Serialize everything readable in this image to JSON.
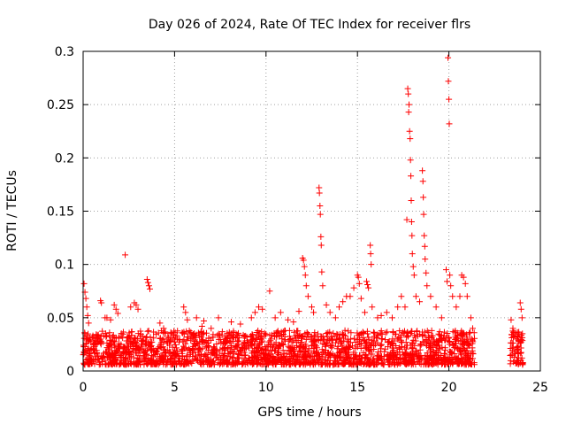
{
  "chart_data": {
    "type": "scatter",
    "title": "Day 026 of 2024, Rate Of TEC Index for receiver flrs",
    "xlabel": "GPS time / hours",
    "ylabel": "ROTI / TECUs",
    "xlim": [
      0,
      25
    ],
    "ylim": [
      0,
      0.3
    ],
    "xticks": [
      0,
      5,
      10,
      15,
      20,
      25
    ],
    "yticks": [
      0,
      0.05,
      0.1,
      0.15,
      0.2,
      0.25,
      0.3
    ],
    "xtick_labels": [
      "0",
      "5",
      "10",
      "15",
      "20",
      "25"
    ],
    "ytick_labels": [
      "0",
      "0.05",
      "0.1",
      "0.15",
      "0.2",
      "0.25",
      "0.3"
    ],
    "grid": true,
    "marker": "+",
    "color": "#ff0000",
    "series": [
      {
        "points": [
          [
            0.05,
            0.082
          ],
          [
            0.1,
            0.074
          ],
          [
            0.15,
            0.068
          ],
          [
            0.2,
            0.06
          ],
          [
            0.25,
            0.052
          ],
          [
            0.3,
            0.045
          ],
          [
            0.1,
            0.035
          ],
          [
            0.2,
            0.03
          ],
          [
            0.95,
            0.066
          ],
          [
            1.0,
            0.064
          ],
          [
            1.2,
            0.05
          ],
          [
            1.3,
            0.05
          ],
          [
            1.5,
            0.048
          ],
          [
            1.7,
            0.062
          ],
          [
            1.8,
            0.058
          ],
          [
            1.9,
            0.054
          ],
          [
            2.3,
            0.109
          ],
          [
            2.6,
            0.06
          ],
          [
            2.8,
            0.064
          ],
          [
            2.9,
            0.062
          ],
          [
            3.0,
            0.058
          ],
          [
            3.1,
            0.02
          ],
          [
            3.5,
            0.086
          ],
          [
            3.55,
            0.083
          ],
          [
            3.6,
            0.08
          ],
          [
            3.65,
            0.077
          ],
          [
            4.2,
            0.045
          ],
          [
            4.4,
            0.04
          ],
          [
            4.8,
            0.035
          ],
          [
            5.5,
            0.06
          ],
          [
            5.6,
            0.055
          ],
          [
            5.7,
            0.048
          ],
          [
            6.2,
            0.05
          ],
          [
            6.5,
            0.042
          ],
          [
            6.6,
            0.047
          ],
          [
            7.0,
            0.04
          ],
          [
            7.4,
            0.05
          ],
          [
            8.1,
            0.046
          ],
          [
            8.6,
            0.044
          ],
          [
            9.2,
            0.05
          ],
          [
            9.4,
            0.055
          ],
          [
            9.6,
            0.06
          ],
          [
            9.8,
            0.058
          ],
          [
            10.2,
            0.075
          ],
          [
            10.5,
            0.05
          ],
          [
            10.8,
            0.055
          ],
          [
            11.2,
            0.048
          ],
          [
            11.5,
            0.046
          ],
          [
            11.8,
            0.056
          ],
          [
            12.0,
            0.106
          ],
          [
            12.05,
            0.104
          ],
          [
            12.1,
            0.098
          ],
          [
            12.15,
            0.09
          ],
          [
            12.2,
            0.08
          ],
          [
            12.3,
            0.07
          ],
          [
            12.5,
            0.06
          ],
          [
            12.6,
            0.055
          ],
          [
            12.9,
            0.172
          ],
          [
            12.92,
            0.167
          ],
          [
            12.95,
            0.155
          ],
          [
            12.97,
            0.147
          ],
          [
            13.0,
            0.126
          ],
          [
            13.02,
            0.118
          ],
          [
            13.05,
            0.093
          ],
          [
            13.1,
            0.08
          ],
          [
            13.3,
            0.062
          ],
          [
            13.5,
            0.055
          ],
          [
            13.8,
            0.05
          ],
          [
            14.0,
            0.06
          ],
          [
            14.2,
            0.065
          ],
          [
            14.4,
            0.07
          ],
          [
            14.6,
            0.07
          ],
          [
            14.8,
            0.078
          ],
          [
            15.0,
            0.09
          ],
          [
            15.05,
            0.088
          ],
          [
            15.1,
            0.082
          ],
          [
            15.2,
            0.068
          ],
          [
            15.4,
            0.055
          ],
          [
            15.5,
            0.084
          ],
          [
            15.55,
            0.081
          ],
          [
            15.6,
            0.078
          ],
          [
            15.7,
            0.118
          ],
          [
            15.72,
            0.11
          ],
          [
            15.75,
            0.1
          ],
          [
            15.8,
            0.06
          ],
          [
            16.1,
            0.05
          ],
          [
            16.3,
            0.052
          ],
          [
            16.6,
            0.055
          ],
          [
            16.9,
            0.05
          ],
          [
            17.2,
            0.06
          ],
          [
            17.4,
            0.07
          ],
          [
            17.6,
            0.06
          ],
          [
            17.7,
            0.142
          ],
          [
            17.75,
            0.265
          ],
          [
            17.78,
            0.26
          ],
          [
            17.8,
            0.243
          ],
          [
            17.82,
            0.25
          ],
          [
            17.85,
            0.225
          ],
          [
            17.88,
            0.218
          ],
          [
            17.9,
            0.198
          ],
          [
            17.92,
            0.183
          ],
          [
            17.94,
            0.16
          ],
          [
            17.96,
            0.14
          ],
          [
            17.98,
            0.127
          ],
          [
            18.0,
            0.11
          ],
          [
            18.05,
            0.098
          ],
          [
            18.1,
            0.09
          ],
          [
            18.2,
            0.07
          ],
          [
            18.4,
            0.065
          ],
          [
            18.55,
            0.188
          ],
          [
            18.58,
            0.178
          ],
          [
            18.6,
            0.163
          ],
          [
            18.62,
            0.147
          ],
          [
            18.65,
            0.127
          ],
          [
            18.68,
            0.117
          ],
          [
            18.7,
            0.105
          ],
          [
            18.75,
            0.092
          ],
          [
            18.8,
            0.08
          ],
          [
            19.0,
            0.07
          ],
          [
            19.3,
            0.06
          ],
          [
            19.6,
            0.05
          ],
          [
            19.85,
            0.095
          ],
          [
            19.9,
            0.084
          ],
          [
            19.95,
            0.294
          ],
          [
            19.97,
            0.272
          ],
          [
            20.0,
            0.255
          ],
          [
            20.02,
            0.232
          ],
          [
            20.05,
            0.09
          ],
          [
            20.1,
            0.08
          ],
          [
            20.2,
            0.07
          ],
          [
            20.4,
            0.06
          ],
          [
            20.6,
            0.07
          ],
          [
            20.7,
            0.09
          ],
          [
            20.8,
            0.088
          ],
          [
            20.9,
            0.082
          ],
          [
            21.0,
            0.07
          ],
          [
            21.2,
            0.05
          ],
          [
            21.3,
            0.04
          ],
          [
            23.4,
            0.048
          ],
          [
            23.5,
            0.04
          ],
          [
            23.7,
            0.03
          ],
          [
            23.9,
            0.064
          ],
          [
            23.95,
            0.058
          ],
          [
            24.0,
            0.05
          ]
        ],
        "baseline_band": {
          "segments": [
            [
              0.0,
              21.4
            ],
            [
              23.35,
              24.05
            ]
          ],
          "y_range": [
            0.006,
            0.038
          ],
          "count": 2200
        }
      }
    ]
  }
}
